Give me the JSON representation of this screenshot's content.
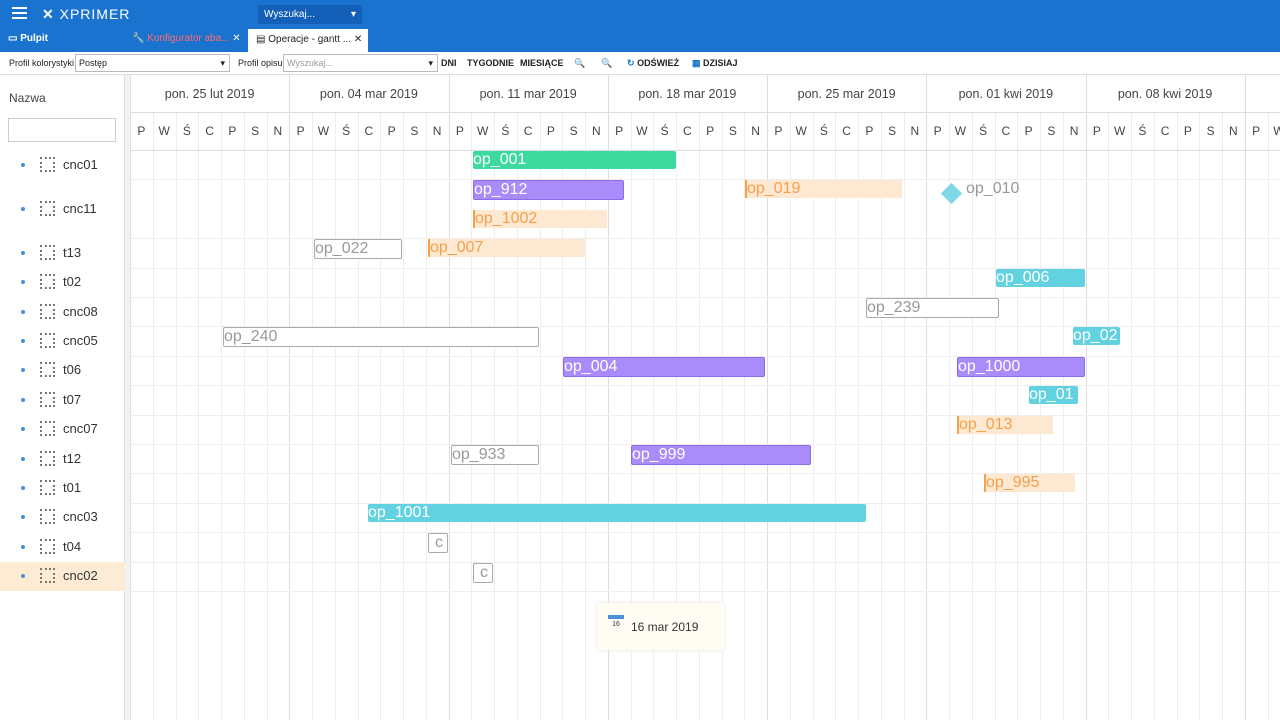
{
  "app": {
    "logo": "XPRIMER",
    "search": "Wyszukaj..."
  },
  "tabs": [
    "Pulpit",
    "Konfigurator aba...",
    "Operacje - gantt ..."
  ],
  "toolbar": {
    "color_profile_label": "Profil kolorystyki",
    "color_profile_value": "Postęp",
    "desc_profile_label": "Profil opisu",
    "desc_profile_placeholder": "Wyszukaj...",
    "buttons": [
      "DNI",
      "TYGODNIE",
      "MIESIĄCE",
      "ODŚWIEŻ",
      "DZISIAJ"
    ]
  },
  "grid": {
    "name_header": "Nazwa",
    "weeks": [
      "pon. 25 lut 2019",
      "pon. 04 mar 2019",
      "pon. 11 mar 2019",
      "pon. 18 mar 2019",
      "pon. 25 mar 2019",
      "pon. 01 kwi 2019",
      "pon. 08 kwi 2019"
    ],
    "days": [
      "P",
      "W",
      "Ś",
      "C",
      "P",
      "S",
      "N"
    ]
  },
  "resources": [
    {
      "name": "cnc01",
      "tasks": [
        {
          "label": "op_001"
        }
      ]
    },
    {
      "name": "cnc11",
      "tasks": [
        {
          "label": "op_912"
        },
        {
          "label": "op_019"
        },
        {
          "label": "op_010"
        },
        {
          "label": "op_1002"
        }
      ]
    },
    {
      "name": "t13",
      "tasks": [
        {
          "label": "op_022"
        },
        {
          "label": "op_007"
        }
      ]
    },
    {
      "name": "t02",
      "tasks": [
        {
          "label": "op_006"
        }
      ]
    },
    {
      "name": "cnc08",
      "tasks": [
        {
          "label": "op_239"
        }
      ]
    },
    {
      "name": "cnc05",
      "tasks": [
        {
          "label": "op_240"
        },
        {
          "label": "op_02"
        }
      ]
    },
    {
      "name": "t06",
      "tasks": [
        {
          "label": "op_004"
        },
        {
          "label": "op_1000"
        }
      ]
    },
    {
      "name": "t07",
      "tasks": [
        {
          "label": "op_01"
        }
      ]
    },
    {
      "name": "cnc07",
      "tasks": [
        {
          "label": "op_013"
        }
      ]
    },
    {
      "name": "t12",
      "tasks": [
        {
          "label": "op_933"
        },
        {
          "label": "op_999"
        }
      ]
    },
    {
      "name": "t01",
      "tasks": [
        {
          "label": "op_995"
        }
      ]
    },
    {
      "name": "cnc03",
      "tasks": [
        {
          "label": "op_1001"
        }
      ]
    },
    {
      "name": "t04",
      "tasks": [
        {
          "label": "c"
        }
      ]
    },
    {
      "name": "cnc02",
      "tasks": [
        {
          "label": "c"
        }
      ]
    }
  ],
  "tooltip": {
    "icon_day": "16",
    "date": "16 mar 2019"
  }
}
